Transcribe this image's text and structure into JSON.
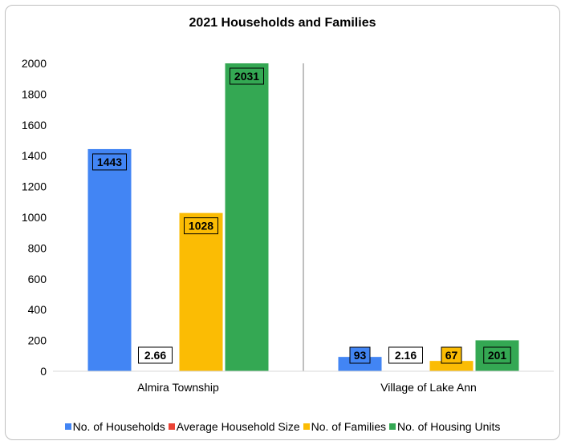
{
  "chart_data": {
    "type": "bar",
    "title": "2021 Households and Families",
    "categories": [
      "Almira Township",
      "Village of Lake Ann"
    ],
    "series": [
      {
        "name": "No. of Households",
        "color": "#4285f4",
        "values": [
          1443,
          93
        ]
      },
      {
        "name": "Average Household Size",
        "color": "#ea4335",
        "values": [
          2.66,
          2.16
        ]
      },
      {
        "name": "No. of Families",
        "color": "#fbbc04",
        "values": [
          1028,
          67
        ]
      },
      {
        "name": "No. of Housing Units",
        "color": "#34a853",
        "values": [
          2031,
          201
        ]
      }
    ],
    "ylim": [
      0,
      2000
    ],
    "yticks": [
      0,
      200,
      400,
      600,
      800,
      1000,
      1200,
      1400,
      1600,
      1800,
      2000
    ],
    "data_labels": [
      [
        "1443",
        "93"
      ],
      [
        "2.66",
        "2.16"
      ],
      [
        "1028",
        "67"
      ],
      [
        "2031",
        "201"
      ]
    ],
    "legend_position": "bottom",
    "gridlines": false
  }
}
